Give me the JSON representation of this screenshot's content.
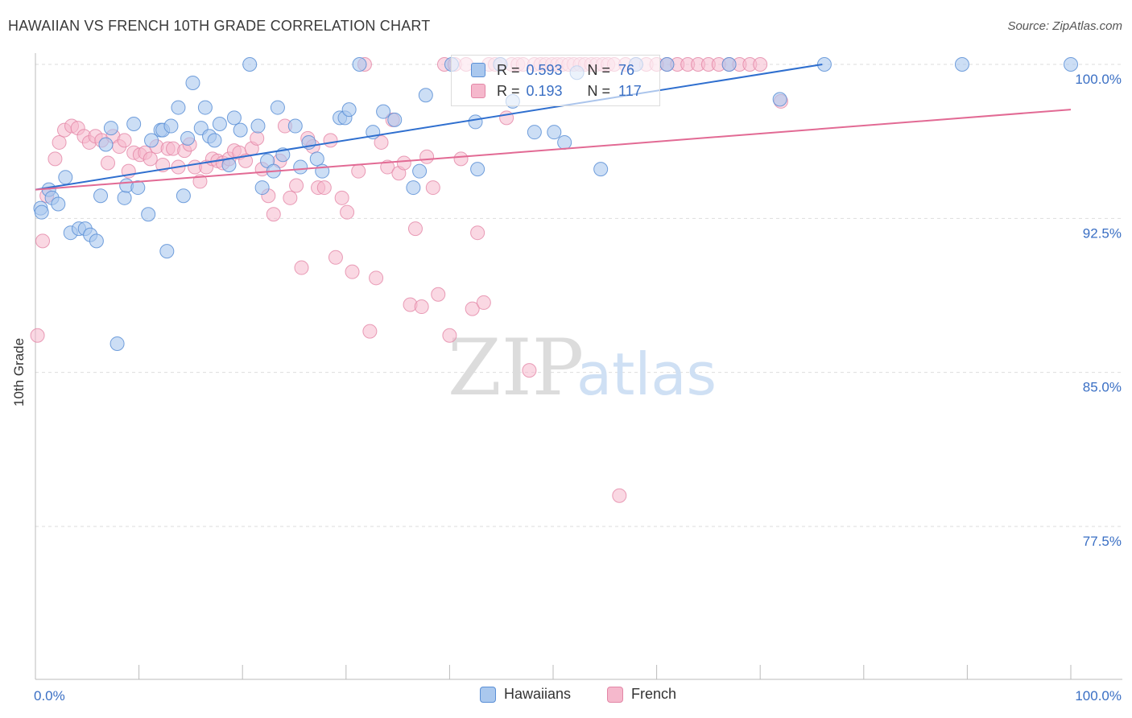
{
  "title": "HAWAIIAN VS FRENCH 10TH GRADE CORRELATION CHART",
  "source": "Source: ZipAtlas.com",
  "watermark": {
    "zip": "ZIP",
    "atlas": "atlas"
  },
  "colors": {
    "hawaiians_fill": "#aac8ee",
    "hawaiians_stroke": "#5a8fd6",
    "hawaiians_line": "#2f6fcf",
    "french_fill": "#f5b8cc",
    "french_stroke": "#e386a6",
    "french_line": "#e26a94",
    "tick_label": "#3a6fc4",
    "grid": "#dddddd"
  },
  "legend": {
    "rows": [
      {
        "r_label": "R =",
        "r_value": "0.593",
        "n_label": "N =",
        "n_value": "76",
        "series": "hawaiians"
      },
      {
        "r_label": "R =",
        "r_value": "0.193",
        "n_label": "N =",
        "n_value": "117",
        "series": "french"
      }
    ]
  },
  "bottom_legend": [
    "Hawaiians",
    "French"
  ],
  "chart_data": {
    "type": "scatter",
    "title": "HAWAIIAN VS FRENCH 10TH GRADE CORRELATION CHART",
    "xlabel": "",
    "ylabel": "10th Grade",
    "xlim": [
      0,
      100
    ],
    "ylim": [
      71,
      101
    ],
    "x_tick_labels": [
      "0.0%",
      "100.0%"
    ],
    "y_ticks": [
      77.5,
      85.0,
      92.5,
      100.0
    ],
    "y_tick_labels": [
      "77.5%",
      "85.0%",
      "92.5%",
      "100.0%"
    ],
    "grid": "horizontal dashed",
    "legend_placement": "top-center and bottom",
    "series": [
      {
        "name": "Hawaiians",
        "r": 0.593,
        "n": 76,
        "trend": {
          "x": [
            0,
            76
          ],
          "y": [
            93.9,
            100.0
          ]
        },
        "points": [
          [
            0.5,
            93.0
          ],
          [
            0.6,
            92.8
          ],
          [
            1.3,
            93.9
          ],
          [
            1.6,
            93.5
          ],
          [
            2.2,
            93.2
          ],
          [
            2.9,
            94.5
          ],
          [
            3.4,
            91.8
          ],
          [
            4.2,
            92.0
          ],
          [
            4.8,
            92.0
          ],
          [
            5.3,
            91.7
          ],
          [
            5.9,
            91.4
          ],
          [
            6.3,
            93.6
          ],
          [
            6.8,
            96.1
          ],
          [
            7.3,
            96.9
          ],
          [
            7.9,
            86.4
          ],
          [
            8.6,
            93.5
          ],
          [
            8.8,
            94.1
          ],
          [
            9.5,
            97.1
          ],
          [
            9.9,
            94.0
          ],
          [
            10.9,
            92.7
          ],
          [
            11.2,
            96.3
          ],
          [
            12.1,
            96.8
          ],
          [
            12.3,
            96.8
          ],
          [
            12.7,
            90.9
          ],
          [
            13.1,
            97.0
          ],
          [
            13.8,
            97.9
          ],
          [
            14.3,
            93.6
          ],
          [
            14.7,
            96.4
          ],
          [
            15.2,
            99.1
          ],
          [
            16.0,
            96.9
          ],
          [
            16.4,
            97.9
          ],
          [
            16.8,
            96.5
          ],
          [
            17.3,
            96.3
          ],
          [
            17.8,
            97.1
          ],
          [
            18.7,
            95.1
          ],
          [
            19.2,
            97.4
          ],
          [
            19.8,
            96.8
          ],
          [
            20.7,
            100.0
          ],
          [
            21.5,
            97.0
          ],
          [
            21.9,
            94.0
          ],
          [
            22.4,
            95.3
          ],
          [
            23.0,
            94.8
          ],
          [
            23.4,
            97.9
          ],
          [
            23.9,
            95.6
          ],
          [
            25.1,
            97.0
          ],
          [
            25.6,
            95.0
          ],
          [
            26.4,
            96.2
          ],
          [
            27.2,
            95.4
          ],
          [
            27.7,
            94.8
          ],
          [
            29.4,
            97.4
          ],
          [
            29.9,
            97.4
          ],
          [
            30.3,
            97.8
          ],
          [
            31.3,
            100.0
          ],
          [
            32.6,
            96.7
          ],
          [
            33.6,
            97.7
          ],
          [
            34.7,
            97.3
          ],
          [
            37.1,
            94.8
          ],
          [
            37.7,
            98.5
          ],
          [
            42.5,
            97.2
          ],
          [
            42.7,
            94.9
          ],
          [
            46.1,
            98.2
          ],
          [
            48.2,
            96.7
          ],
          [
            50.1,
            96.7
          ],
          [
            51.1,
            96.2
          ],
          [
            54.6,
            94.9
          ],
          [
            61.0,
            100.0
          ],
          [
            67.0,
            100.0
          ],
          [
            71.9,
            98.3
          ],
          [
            76.2,
            100.0
          ],
          [
            89.5,
            100.0
          ],
          [
            100.0,
            100.0
          ],
          [
            36.5,
            94.0
          ],
          [
            40.2,
            100.0
          ],
          [
            44.9,
            100.0
          ],
          [
            52.3,
            99.6
          ],
          [
            58.0,
            100.0
          ]
        ]
      },
      {
        "name": "French",
        "r": 0.193,
        "n": 117,
        "trend": {
          "x": [
            0,
            100
          ],
          "y": [
            93.9,
            97.8
          ]
        },
        "points": [
          [
            0.2,
            86.8
          ],
          [
            0.7,
            91.4
          ],
          [
            1.1,
            93.6
          ],
          [
            1.9,
            95.4
          ],
          [
            2.3,
            96.2
          ],
          [
            2.8,
            96.8
          ],
          [
            3.5,
            97.0
          ],
          [
            4.1,
            96.9
          ],
          [
            4.7,
            96.5
          ],
          [
            5.2,
            96.2
          ],
          [
            5.8,
            96.5
          ],
          [
            6.4,
            96.3
          ],
          [
            7.0,
            95.2
          ],
          [
            7.5,
            96.5
          ],
          [
            8.1,
            96.0
          ],
          [
            8.6,
            96.3
          ],
          [
            9.0,
            94.8
          ],
          [
            9.5,
            95.7
          ],
          [
            10.1,
            95.6
          ],
          [
            10.6,
            95.7
          ],
          [
            11.1,
            95.4
          ],
          [
            11.7,
            96.0
          ],
          [
            12.3,
            95.1
          ],
          [
            12.8,
            95.9
          ],
          [
            13.3,
            95.9
          ],
          [
            13.8,
            95.0
          ],
          [
            14.4,
            95.8
          ],
          [
            14.9,
            96.1
          ],
          [
            15.4,
            95.0
          ],
          [
            15.9,
            94.3
          ],
          [
            16.5,
            95.0
          ],
          [
            17.1,
            95.4
          ],
          [
            17.6,
            95.3
          ],
          [
            18.1,
            95.2
          ],
          [
            18.7,
            95.4
          ],
          [
            19.2,
            95.8
          ],
          [
            19.7,
            95.7
          ],
          [
            20.3,
            95.3
          ],
          [
            20.9,
            95.9
          ],
          [
            21.4,
            96.4
          ],
          [
            21.9,
            94.9
          ],
          [
            22.5,
            93.6
          ],
          [
            23.0,
            92.7
          ],
          [
            23.6,
            95.3
          ],
          [
            24.1,
            97.0
          ],
          [
            24.6,
            93.5
          ],
          [
            25.2,
            94.1
          ],
          [
            25.7,
            90.1
          ],
          [
            26.3,
            96.4
          ],
          [
            26.8,
            96.0
          ],
          [
            27.3,
            94.0
          ],
          [
            27.9,
            94.0
          ],
          [
            28.5,
            96.3
          ],
          [
            29.0,
            90.6
          ],
          [
            29.6,
            93.5
          ],
          [
            30.1,
            92.8
          ],
          [
            30.6,
            89.9
          ],
          [
            31.2,
            94.8
          ],
          [
            31.8,
            100.0
          ],
          [
            32.3,
            87.0
          ],
          [
            32.9,
            89.6
          ],
          [
            33.4,
            96.2
          ],
          [
            34.0,
            95.0
          ],
          [
            34.5,
            97.3
          ],
          [
            35.1,
            94.7
          ],
          [
            35.6,
            95.2
          ],
          [
            36.2,
            88.3
          ],
          [
            36.7,
            92.0
          ],
          [
            37.3,
            88.2
          ],
          [
            37.8,
            95.5
          ],
          [
            38.4,
            94.0
          ],
          [
            38.9,
            88.8
          ],
          [
            39.5,
            100.0
          ],
          [
            40.0,
            86.8
          ],
          [
            40.5,
            100.0
          ],
          [
            41.1,
            95.4
          ],
          [
            41.6,
            100.0
          ],
          [
            42.2,
            88.1
          ],
          [
            42.7,
            91.8
          ],
          [
            43.3,
            88.4
          ],
          [
            43.8,
            100.0
          ],
          [
            44.4,
            100.0
          ],
          [
            44.9,
            100.0
          ],
          [
            45.5,
            97.4
          ],
          [
            46.0,
            100.0
          ],
          [
            46.6,
            100.0
          ],
          [
            47.1,
            100.0
          ],
          [
            47.7,
            85.1
          ],
          [
            48.2,
            100.0
          ],
          [
            48.8,
            100.0
          ],
          [
            49.3,
            100.0
          ],
          [
            49.9,
            100.0
          ],
          [
            50.4,
            100.0
          ],
          [
            50.9,
            100.0
          ],
          [
            51.5,
            100.0
          ],
          [
            52.0,
            100.0
          ],
          [
            52.6,
            100.0
          ],
          [
            53.1,
            100.0
          ],
          [
            53.7,
            100.0
          ],
          [
            54.2,
            100.0
          ],
          [
            54.8,
            100.0
          ],
          [
            55.3,
            100.0
          ],
          [
            55.9,
            100.0
          ],
          [
            56.4,
            79.0
          ],
          [
            57.0,
            100.0
          ],
          [
            58.0,
            100.0
          ],
          [
            59.0,
            100.0
          ],
          [
            60.0,
            100.0
          ],
          [
            61.0,
            100.0
          ],
          [
            62.0,
            100.0
          ],
          [
            63.0,
            100.0
          ],
          [
            64.0,
            100.0
          ],
          [
            65.0,
            100.0
          ],
          [
            66.0,
            100.0
          ],
          [
            67.0,
            100.0
          ],
          [
            68.0,
            100.0
          ],
          [
            69.0,
            100.0
          ],
          [
            70.0,
            100.0
          ],
          [
            72.0,
            98.2
          ]
        ]
      }
    ]
  }
}
